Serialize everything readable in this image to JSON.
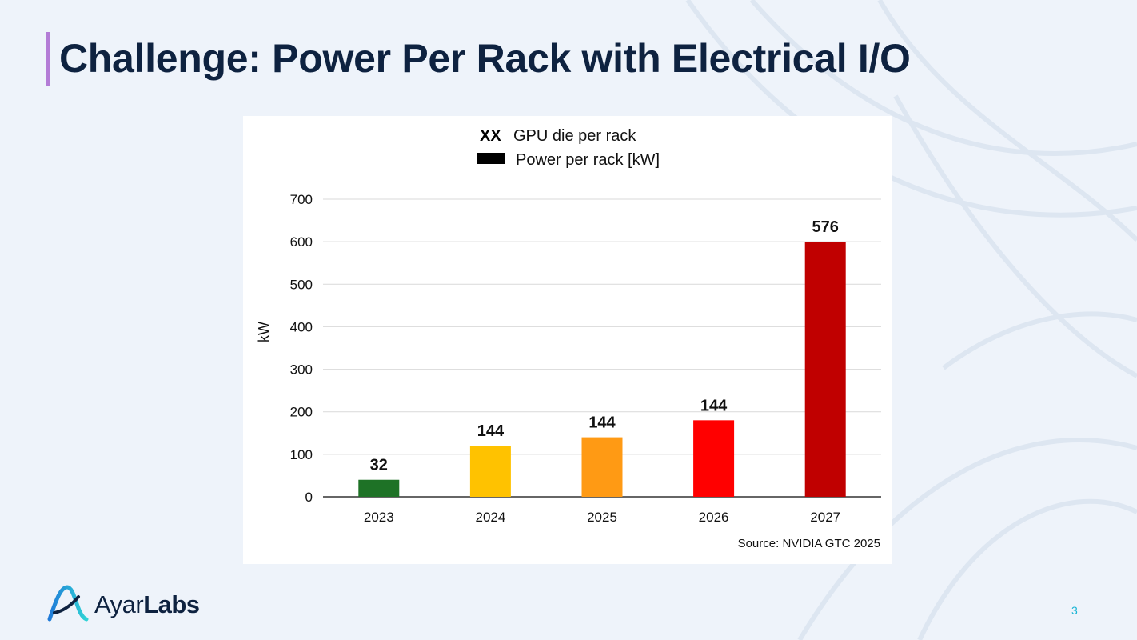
{
  "slide": {
    "title": "Challenge: Power Per Rack with Electrical I/O",
    "page_number": "3",
    "logo": {
      "part1": "Ayar",
      "part2": "Labs"
    },
    "colors": {
      "title": "#0e2240",
      "accent": "#b37cd6",
      "page_number": "#18b4d4"
    }
  },
  "chart_data": {
    "type": "bar",
    "legend": {
      "label_marker": "XX",
      "label_text": "GPU die per rack",
      "series_text": "Power per rack [kW]"
    },
    "ylabel": "kW",
    "xlabel": "",
    "ylim": [
      0,
      700
    ],
    "yticks": [
      0,
      100,
      200,
      300,
      400,
      500,
      600,
      700
    ],
    "categories": [
      "2023",
      "2024",
      "2025",
      "2026",
      "2027"
    ],
    "values": [
      40,
      120,
      140,
      180,
      600
    ],
    "bar_labels": [
      "32",
      "144",
      "144",
      "144",
      "576"
    ],
    "bar_colors": [
      "#1e7226",
      "#ffc200",
      "#ff9a14",
      "#ff0000",
      "#c00000"
    ],
    "source": "Source: NVIDIA GTC 2025",
    "grid": true
  }
}
